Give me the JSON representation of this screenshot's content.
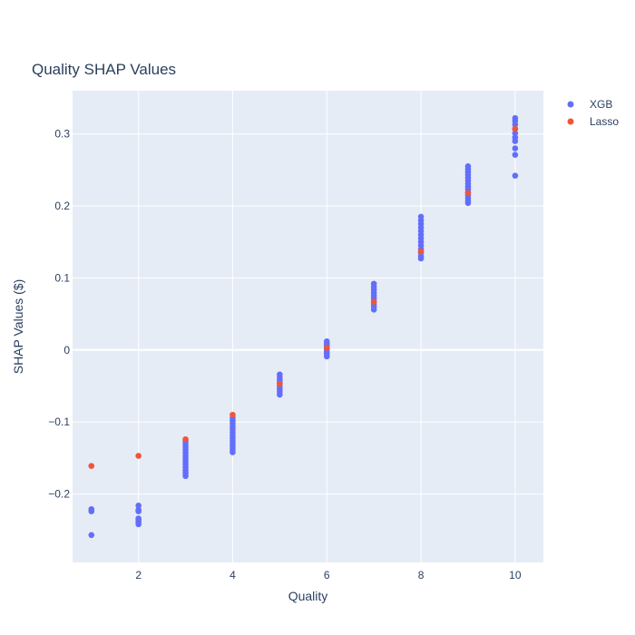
{
  "chart_data": {
    "type": "scatter",
    "title": "Quality SHAP Values",
    "xlabel": "Quality",
    "ylabel": "SHAP Values ($)",
    "xlim": [
      0.6,
      10.6
    ],
    "ylim": [
      -0.295,
      0.36
    ],
    "x_ticks": [
      2,
      4,
      6,
      8,
      10
    ],
    "x_tick_labels": [
      "2",
      "4",
      "6",
      "8",
      "10"
    ],
    "y_ticks": [
      -0.2,
      -0.1,
      0,
      0.1,
      0.2,
      0.3
    ],
    "y_tick_labels": [
      "−0.2",
      "−0.1",
      "0",
      "0.1",
      "0.2",
      "0.3"
    ],
    "grid": true,
    "legend_position": "top-right",
    "colors": {
      "plot_bg": "#e5ecf6",
      "grid": "#ffffff",
      "text": "#2a3f5f",
      "xgb": "#636efa",
      "lasso": "#ef553b"
    },
    "series": [
      {
        "name": "XGB",
        "color": "#636efa",
        "points": [
          [
            1,
            -0.221
          ],
          [
            1,
            -0.224
          ],
          [
            1,
            -0.257
          ],
          [
            2,
            -0.216
          ],
          [
            2,
            -0.222
          ],
          [
            2,
            -0.224
          ],
          [
            2,
            -0.234
          ],
          [
            2,
            -0.236
          ],
          [
            2,
            -0.239
          ],
          [
            2,
            -0.242
          ],
          [
            3,
            -0.127
          ],
          [
            3,
            -0.131
          ],
          [
            3,
            -0.135
          ],
          [
            3,
            -0.139
          ],
          [
            3,
            -0.143
          ],
          [
            3,
            -0.147
          ],
          [
            3,
            -0.151
          ],
          [
            3,
            -0.155
          ],
          [
            3,
            -0.159
          ],
          [
            3,
            -0.163
          ],
          [
            3,
            -0.167
          ],
          [
            3,
            -0.171
          ],
          [
            3,
            -0.175
          ],
          [
            4,
            -0.094
          ],
          [
            4,
            -0.098
          ],
          [
            4,
            -0.102
          ],
          [
            4,
            -0.106
          ],
          [
            4,
            -0.11
          ],
          [
            4,
            -0.114
          ],
          [
            4,
            -0.118
          ],
          [
            4,
            -0.122
          ],
          [
            4,
            -0.126
          ],
          [
            4,
            -0.13
          ],
          [
            4,
            -0.134
          ],
          [
            4,
            -0.138
          ],
          [
            4,
            -0.142
          ],
          [
            5,
            -0.034
          ],
          [
            5,
            -0.038
          ],
          [
            5,
            -0.042
          ],
          [
            5,
            -0.046
          ],
          [
            5,
            -0.05
          ],
          [
            5,
            -0.054
          ],
          [
            5,
            -0.058
          ],
          [
            5,
            -0.062
          ],
          [
            6,
            0.012
          ],
          [
            6,
            0.009
          ],
          [
            6,
            0.006
          ],
          [
            6,
            0.003
          ],
          [
            6,
            0.0
          ],
          [
            6,
            -0.003
          ],
          [
            6,
            -0.006
          ],
          [
            6,
            -0.009
          ],
          [
            7,
            0.092
          ],
          [
            7,
            0.088
          ],
          [
            7,
            0.084
          ],
          [
            7,
            0.08
          ],
          [
            7,
            0.076
          ],
          [
            7,
            0.072
          ],
          [
            7,
            0.068
          ],
          [
            7,
            0.064
          ],
          [
            7,
            0.06
          ],
          [
            7,
            0.056
          ],
          [
            8,
            0.185
          ],
          [
            8,
            0.18
          ],
          [
            8,
            0.175
          ],
          [
            8,
            0.17
          ],
          [
            8,
            0.165
          ],
          [
            8,
            0.16
          ],
          [
            8,
            0.155
          ],
          [
            8,
            0.15
          ],
          [
            8,
            0.145
          ],
          [
            8,
            0.14
          ],
          [
            8,
            0.135
          ],
          [
            8,
            0.13
          ],
          [
            8,
            0.127
          ],
          [
            9,
            0.255
          ],
          [
            9,
            0.251
          ],
          [
            9,
            0.247
          ],
          [
            9,
            0.243
          ],
          [
            9,
            0.239
          ],
          [
            9,
            0.235
          ],
          [
            9,
            0.231
          ],
          [
            9,
            0.227
          ],
          [
            9,
            0.223
          ],
          [
            9,
            0.219
          ],
          [
            9,
            0.215
          ],
          [
            9,
            0.211
          ],
          [
            9,
            0.207
          ],
          [
            9,
            0.204
          ],
          [
            10,
            0.322
          ],
          [
            10,
            0.318
          ],
          [
            10,
            0.313
          ],
          [
            10,
            0.307
          ],
          [
            10,
            0.301
          ],
          [
            10,
            0.295
          ],
          [
            10,
            0.29
          ],
          [
            10,
            0.28
          ],
          [
            10,
            0.271
          ],
          [
            10,
            0.242
          ]
        ]
      },
      {
        "name": "Lasso",
        "color": "#ef553b",
        "points": [
          [
            1,
            -0.161
          ],
          [
            2,
            -0.147
          ],
          [
            3,
            -0.124
          ],
          [
            4,
            -0.09
          ],
          [
            5,
            -0.047
          ],
          [
            6,
            0.003
          ],
          [
            7,
            0.067
          ],
          [
            8,
            0.137
          ],
          [
            9,
            0.218
          ],
          [
            10,
            0.307
          ]
        ]
      }
    ]
  }
}
